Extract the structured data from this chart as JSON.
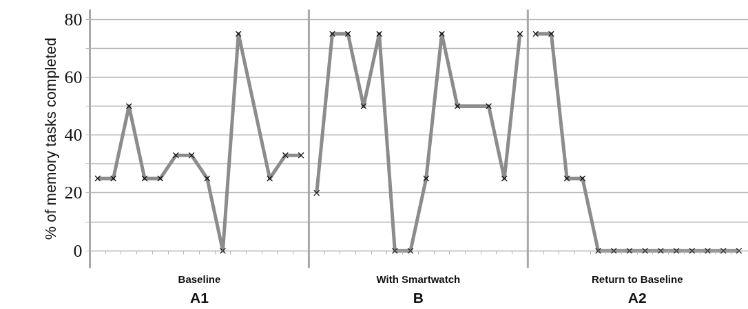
{
  "chart_data": {
    "type": "line",
    "ylabel": "% of memory tasks completed",
    "marker": "cross",
    "line_style": "solid",
    "grid": "y",
    "tick_labels": "y",
    "annotations": [
      "Baseline",
      "A1",
      "With Smartwatch",
      "B",
      "Return to Baseline",
      "A2"
    ],
    "categories": [
      null,
      null,
      null,
      null,
      null,
      null,
      null,
      null,
      null,
      null,
      null,
      null,
      null,
      null,
      null,
      null,
      null,
      null,
      null,
      null,
      null,
      null,
      null,
      null,
      null,
      null,
      null,
      null,
      null,
      null,
      null,
      null,
      null,
      null,
      null,
      null,
      null,
      null,
      null,
      null,
      null,
      null
    ],
    "series": [
      {
        "color": "#8c8c8c",
        "values": [
          25,
          25,
          50,
          25,
          25,
          33,
          33,
          25,
          0,
          75,
          null,
          25,
          33,
          33,
          null,
          null,
          null,
          null,
          null,
          null,
          null,
          null,
          null,
          null,
          null,
          null,
          null,
          null,
          null,
          null,
          null,
          null,
          null,
          null,
          null,
          null,
          null,
          null,
          null,
          null,
          null,
          null
        ]
      },
      {
        "color": "#8c8c8c",
        "values": [
          null,
          null,
          null,
          null,
          null,
          null,
          null,
          null,
          null,
          null,
          null,
          null,
          null,
          null,
          20,
          75,
          75,
          50,
          75,
          0,
          0,
          25,
          75,
          50,
          null,
          50,
          25,
          75,
          null,
          null,
          null,
          null,
          null,
          null,
          null,
          null,
          null,
          null,
          null,
          null,
          null,
          null
        ]
      },
      {
        "color": "#8c8c8c",
        "values": [
          null,
          null,
          null,
          null,
          null,
          null,
          null,
          null,
          null,
          null,
          null,
          null,
          null,
          null,
          null,
          null,
          null,
          null,
          null,
          null,
          null,
          null,
          null,
          null,
          null,
          null,
          null,
          null,
          75,
          75,
          25,
          25,
          0,
          0,
          0,
          0,
          0,
          0,
          0,
          0,
          0,
          0
        ]
      }
    ],
    "ylim": [
      -6,
      83.5
    ],
    "yticks": [
      0,
      {
        "value": 10,
        "label": null
      },
      20,
      {
        "value": 30,
        "label": null
      },
      40,
      {
        "value": 50,
        "label": null
      },
      60,
      {
        "value": 70,
        "label": null
      },
      80
    ]
  }
}
